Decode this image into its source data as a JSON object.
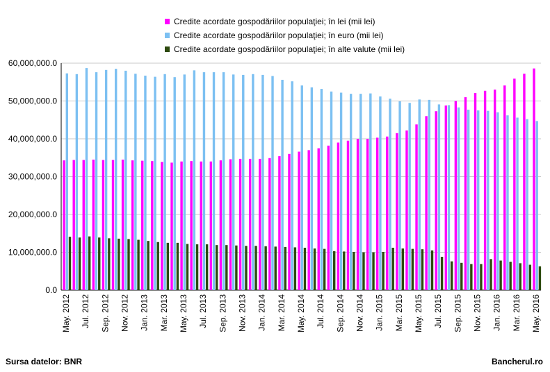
{
  "chart_data": {
    "type": "bar",
    "title": "",
    "xlabel": "",
    "ylabel": "",
    "ylim": [
      0,
      60000000
    ],
    "yticks": [
      "0.0",
      "10,000,000.0",
      "20,000,000.0",
      "30,000,000.0",
      "40,000,000.0",
      "50,000,000.0",
      "60,000,000.0"
    ],
    "grid": true,
    "legend_position": "top",
    "categories": [
      "May. 2012",
      "Jun. 2012",
      "Jul. 2012",
      "Aug. 2012",
      "Sep. 2012",
      "Oct. 2012",
      "Nov. 2012",
      "Dec. 2012",
      "Jan. 2013",
      "Feb. 2013",
      "Mar. 2013",
      "Apr. 2013",
      "May. 2013",
      "Jun. 2013",
      "Jul. 2013",
      "Aug. 2013",
      "Sep. 2013",
      "Oct. 2013",
      "Nov. 2013",
      "Dec. 2013",
      "Jan. 2014",
      "Feb. 2014",
      "Mar. 2014",
      "Apr. 2014",
      "May. 2014",
      "Jun. 2014",
      "Jul. 2014",
      "Aug. 2014",
      "Sep. 2014",
      "Oct. 2014",
      "Nov. 2014",
      "Dec. 2014",
      "Jan. 2015",
      "Feb. 2015",
      "Mar. 2015",
      "Apr. 2015",
      "May. 2015",
      "Jun. 2015",
      "Jul. 2015",
      "Aug. 2015",
      "Sep. 2015",
      "Oct. 2015",
      "Nov. 2015",
      "Dec. 2015",
      "Jan. 2016",
      "Feb. 2016",
      "Mar. 2016",
      "Apr. 2016",
      "May. 2016"
    ],
    "xtick_labels": [
      "May. 2012",
      "Jul. 2012",
      "Sep. 2012",
      "Nov. 2012",
      "Jan. 2013",
      "Mar. 2013",
      "May. 2013",
      "Jul. 2013",
      "Sep. 2013",
      "Nov. 2013",
      "Jan. 2014",
      "Mar. 2014",
      "May. 2014",
      "Jul. 2014",
      "Sep. 2014",
      "Nov. 2014",
      "Jan. 2015",
      "Mar. 2015",
      "May. 2015",
      "Jul. 2015",
      "Sep. 2015",
      "Nov. 2015",
      "Jan. 2016",
      "Mar. 2016",
      "May. 2016"
    ],
    "series": [
      {
        "name": "Credite acordate gospodăriilor populaţiei; în lei (mii lei)",
        "color": "#ff00ff",
        "values": [
          34300000,
          34400000,
          34400000,
          34500000,
          34400000,
          34400000,
          34500000,
          34300000,
          34200000,
          34100000,
          33900000,
          33700000,
          34000000,
          34100000,
          34000000,
          34000000,
          34300000,
          34600000,
          34700000,
          34700000,
          34700000,
          34900000,
          35400000,
          36000000,
          36600000,
          37000000,
          37500000,
          38200000,
          39000000,
          39500000,
          40000000,
          40000000,
          40300000,
          40600000,
          41500000,
          42200000,
          43800000,
          46000000,
          47300000,
          48800000,
          50000000,
          51000000,
          52100000,
          52700000,
          53000000,
          54100000,
          55900000,
          57200000,
          58600000
        ]
      },
      {
        "name": "Credite acordate gospodăriilor populaţiei; în euro (mii lei)",
        "color": "#7cc0f2",
        "values": [
          57300000,
          57100000,
          58700000,
          57600000,
          58200000,
          58500000,
          58000000,
          57200000,
          56700000,
          56400000,
          57100000,
          56300000,
          57000000,
          58100000,
          57600000,
          57600000,
          57600000,
          57000000,
          56900000,
          57100000,
          56900000,
          56600000,
          55600000,
          55200000,
          54100000,
          53600000,
          53200000,
          52500000,
          52200000,
          51900000,
          51900000,
          52000000,
          51200000,
          50600000,
          49900000,
          49500000,
          50400000,
          50300000,
          49100000,
          48900000,
          48300000,
          47700000,
          47500000,
          47400000,
          47000000,
          46200000,
          45600000,
          45200000,
          44700000
        ]
      },
      {
        "name": "Credite acordate gospodăriilor populaţiei; în alte valute (mii lei)",
        "color": "#2d4a0e",
        "values": [
          14100000,
          13900000,
          14200000,
          13900000,
          13700000,
          13600000,
          13500000,
          13300000,
          13000000,
          12700000,
          12500000,
          12500000,
          12200000,
          12100000,
          12100000,
          11900000,
          11900000,
          11800000,
          11700000,
          11700000,
          11600000,
          11500000,
          11400000,
          11300000,
          11200000,
          11000000,
          10900000,
          10300000,
          10200000,
          10100000,
          10000000,
          10000000,
          10100000,
          11200000,
          11000000,
          10900000,
          10800000,
          10500000,
          8800000,
          7600000,
          7200000,
          6900000,
          6900000,
          8200000,
          7800000,
          7500000,
          7100000,
          6700000,
          6300000
        ]
      }
    ]
  },
  "footer": {
    "source": "Sursa datelor: BNR",
    "brand": "Bancherul.ro"
  }
}
